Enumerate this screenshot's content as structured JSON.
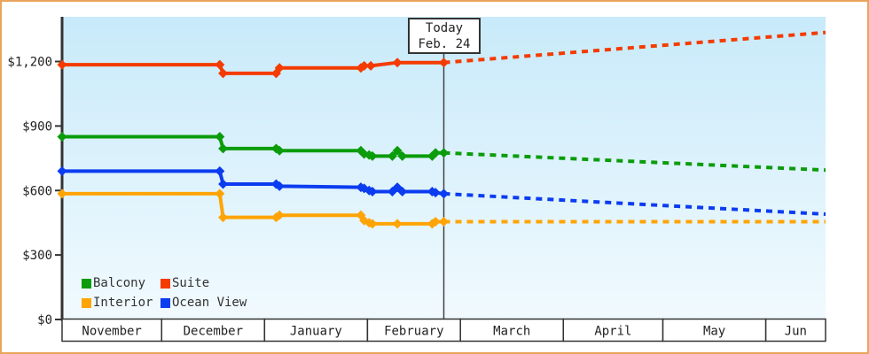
{
  "colors": {
    "frame_border": "#eaa55c",
    "plot_bg_top": "#c8eafa",
    "plot_bg_bottom": "#f1fafe",
    "axis": "#333333",
    "text": "#222222",
    "today_line": "#444444",
    "annotation_bg": "#ffffff"
  },
  "today": {
    "line1": "Today",
    "line2": "Feb. 24",
    "day": 115
  },
  "chart_data": {
    "type": "line",
    "title": "",
    "xlabel": "",
    "ylabel": "",
    "x_unit": "days since Nov 1",
    "x_total_days": 230,
    "ylim": [
      0,
      1410
    ],
    "grid": false,
    "legend_position": "inside bottom-left",
    "style_note": "solid stepped history left of today; dotted projection right of today; diamond markers at change points",
    "y_ticks": [
      {
        "value": 0,
        "label": "$0"
      },
      {
        "value": 300,
        "label": "$300"
      },
      {
        "value": 600,
        "label": "$600"
      },
      {
        "value": 900,
        "label": "$900"
      },
      {
        "value": 1200,
        "label": "$1,200"
      }
    ],
    "months": [
      {
        "label": "November",
        "start_day": 0
      },
      {
        "label": "December",
        "start_day": 30
      },
      {
        "label": "January",
        "start_day": 61
      },
      {
        "label": "February",
        "start_day": 92
      },
      {
        "label": "March",
        "start_day": 120
      },
      {
        "label": "April",
        "start_day": 151
      },
      {
        "label": "May",
        "start_day": 181
      },
      {
        "label": "Jun",
        "start_day": 212
      }
    ],
    "annotation": {
      "text": [
        "Today",
        "Feb. 24"
      ],
      "day": 115
    },
    "series": [
      {
        "name": "Balcony",
        "color": "#0b9c0b",
        "points": [
          [
            0,
            850
          ],
          [
            47.5,
            850
          ],
          [
            48.5,
            795
          ],
          [
            64.5,
            795
          ],
          [
            65.5,
            785
          ],
          [
            90,
            785
          ],
          [
            91,
            770
          ],
          [
            92.5,
            765
          ],
          [
            93.5,
            760
          ],
          [
            99.5,
            760
          ],
          [
            101,
            785
          ],
          [
            102.5,
            760
          ],
          [
            111.5,
            760
          ],
          [
            112.5,
            775
          ],
          [
            115,
            775
          ]
        ],
        "projection": [
          [
            115,
            775
          ],
          [
            230,
            695
          ]
        ]
      },
      {
        "name": "Suite",
        "color": "#f43b00",
        "points": [
          [
            0,
            1185
          ],
          [
            47.5,
            1185
          ],
          [
            48.5,
            1145
          ],
          [
            64.5,
            1145
          ],
          [
            65.5,
            1170
          ],
          [
            90,
            1170
          ],
          [
            91,
            1180
          ],
          [
            93,
            1180
          ],
          [
            101,
            1195
          ],
          [
            115,
            1195
          ]
        ],
        "projection": [
          [
            115,
            1195
          ],
          [
            230,
            1335
          ]
        ]
      },
      {
        "name": "Interior",
        "color": "#ffa405",
        "points": [
          [
            0,
            585
          ],
          [
            47.5,
            585
          ],
          [
            48.5,
            475
          ],
          [
            64.5,
            475
          ],
          [
            65.5,
            485
          ],
          [
            90,
            485
          ],
          [
            91,
            460
          ],
          [
            92.5,
            450
          ],
          [
            93.5,
            445
          ],
          [
            101,
            445
          ],
          [
            111.5,
            445
          ],
          [
            112.5,
            455
          ],
          [
            115,
            455
          ]
        ],
        "projection": [
          [
            115,
            455
          ],
          [
            230,
            455
          ]
        ]
      },
      {
        "name": "Ocean View",
        "color": "#0b3cf0",
        "points": [
          [
            0,
            690
          ],
          [
            47.5,
            690
          ],
          [
            48.5,
            630
          ],
          [
            64.5,
            630
          ],
          [
            65.5,
            620
          ],
          [
            90,
            615
          ],
          [
            91,
            610
          ],
          [
            92.5,
            600
          ],
          [
            93.5,
            595
          ],
          [
            99.5,
            595
          ],
          [
            101,
            615
          ],
          [
            102.5,
            595
          ],
          [
            111.5,
            595
          ],
          [
            112.5,
            590
          ],
          [
            115,
            585
          ]
        ],
        "projection": [
          [
            115,
            585
          ],
          [
            230,
            490
          ]
        ]
      }
    ]
  }
}
